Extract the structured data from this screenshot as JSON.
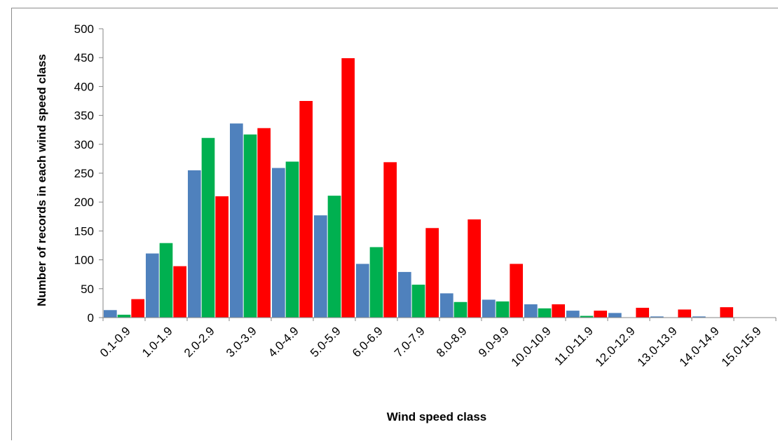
{
  "chart_data": {
    "type": "bar",
    "title": "",
    "xlabel": "Wind speed class",
    "ylabel": "Number of records in each wind speed class",
    "ylim": [
      0,
      500
    ],
    "yticks": [
      0,
      50,
      100,
      150,
      200,
      250,
      300,
      350,
      400,
      450,
      500
    ],
    "grid": false,
    "legend": "none",
    "categories": [
      "0.1-0.9",
      "1.0-1.9",
      "2.0-2.9",
      "3.0-3.9",
      "4.0-4.9",
      "5.0-5.9",
      "6.0-6.9",
      "7.0-7.9",
      "8.0-8.9",
      "9.0-9.9",
      "10.0-10.9",
      "11.0-11.9",
      "12.0-12.9",
      "13.0-13.9",
      "14.0-14.9",
      "15.0-15.9"
    ],
    "series": [
      {
        "color": "#4f81bd",
        "values": [
          13,
          111,
          255,
          336,
          259,
          177,
          93,
          79,
          42,
          31,
          23,
          12,
          8,
          2,
          2,
          0
        ]
      },
      {
        "color": "#00b050",
        "values": [
          5,
          129,
          311,
          317,
          270,
          211,
          122,
          57,
          27,
          28,
          16,
          3,
          0,
          0,
          0,
          0
        ]
      },
      {
        "color": "#ff0000",
        "values": [
          32,
          89,
          210,
          328,
          375,
          449,
          269,
          155,
          170,
          93,
          23,
          12,
          17,
          14,
          18,
          0
        ]
      }
    ]
  }
}
